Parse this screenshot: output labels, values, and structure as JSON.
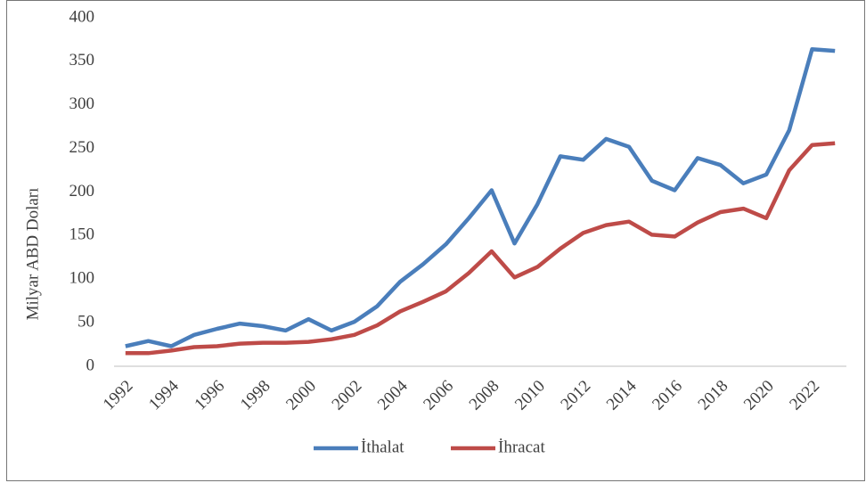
{
  "chart_data": {
    "type": "line",
    "y_label": "Milyar ABD Doları",
    "categories": [
      "1992",
      null,
      "1994",
      null,
      "1996",
      null,
      "1998",
      null,
      "2000",
      null,
      "2002",
      null,
      "2004",
      null,
      "2006",
      null,
      "2008",
      null,
      "2010",
      null,
      "2012",
      null,
      "2014",
      null,
      "2016",
      null,
      "2018",
      null,
      "2020",
      null,
      "2022",
      null
    ],
    "series": [
      {
        "name": "İthalat",
        "color": "#4a7ebb",
        "values": [
          23,
          29,
          23,
          36,
          43,
          49,
          46,
          41,
          54,
          41,
          51,
          69,
          97,
          117,
          140,
          170,
          202,
          141,
          186,
          241,
          237,
          261,
          252,
          213,
          202,
          239,
          231,
          210,
          220,
          271,
          364,
          362
        ]
      },
      {
        "name": "İhracat",
        "color": "#be4b48",
        "values": [
          15,
          15,
          18,
          22,
          23,
          26,
          27,
          27,
          28,
          31,
          36,
          47,
          63,
          74,
          86,
          107,
          132,
          102,
          114,
          135,
          153,
          162,
          166,
          151,
          149,
          165,
          177,
          181,
          170,
          225,
          254,
          256
        ]
      }
    ],
    "ylim": [
      0,
      400
    ],
    "yticks": [
      0,
      50,
      100,
      150,
      200,
      250,
      300,
      350,
      400
    ],
    "grid": false
  }
}
